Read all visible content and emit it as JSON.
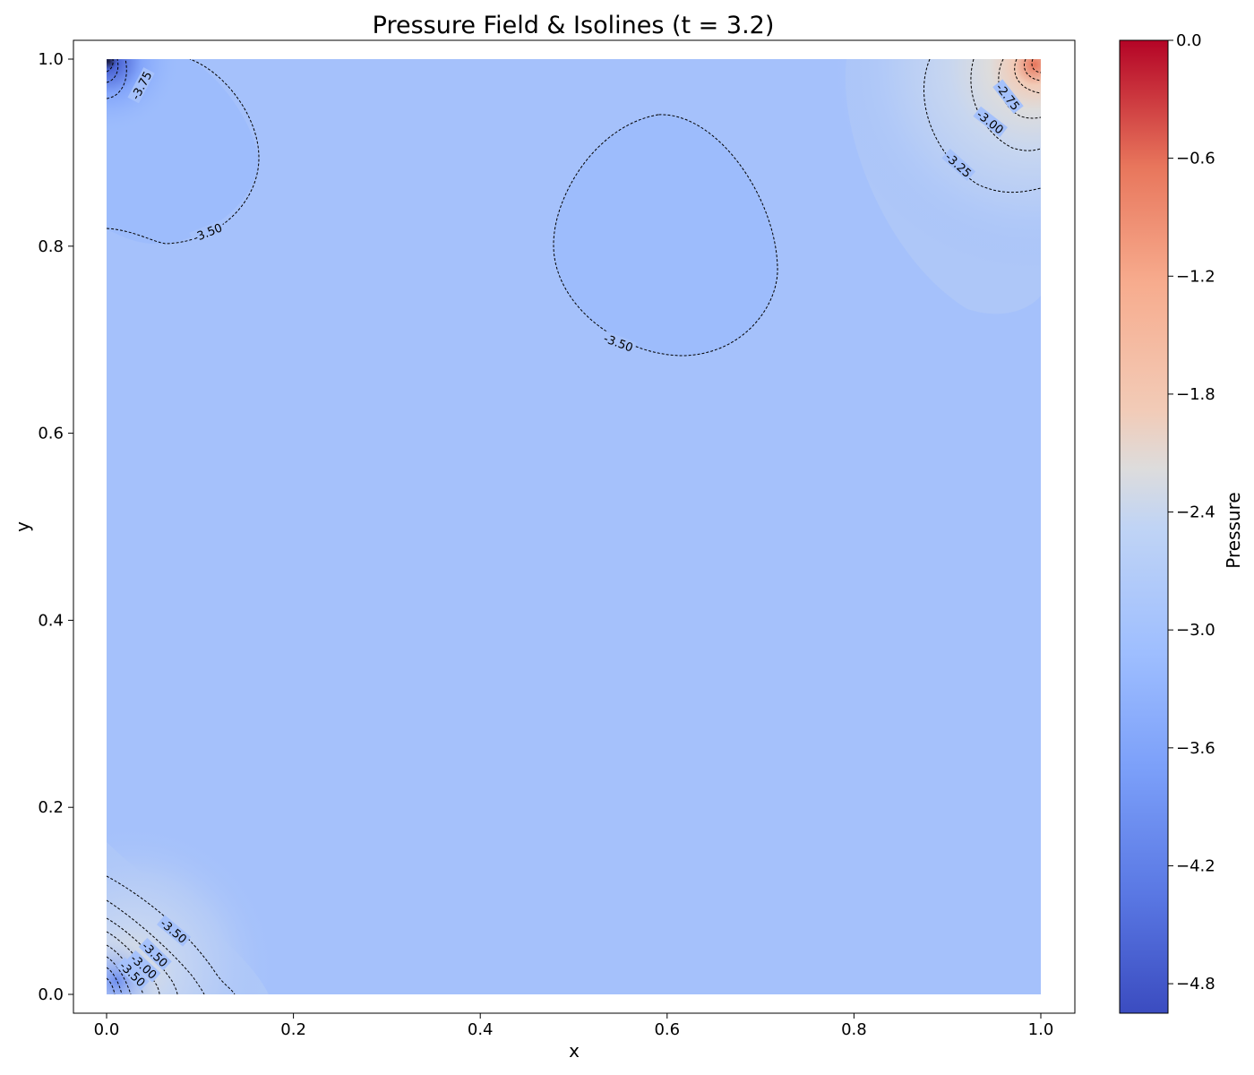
{
  "chart_data": {
    "type": "heatmap",
    "title": "Pressure Field & Isolines (t = 3.2)",
    "xlabel": "x",
    "ylabel": "y",
    "xlim": [
      0.0,
      1.0
    ],
    "ylim": [
      0.0,
      1.0
    ],
    "x_ticks": [
      "0.0",
      "0.2",
      "0.4",
      "0.6",
      "0.8",
      "1.0"
    ],
    "y_ticks": [
      "0.0",
      "0.2",
      "0.4",
      "0.6",
      "0.8",
      "1.0"
    ],
    "colorbar": {
      "label": "Pressure",
      "colormap": "coolwarm",
      "range": [
        -4.95,
        0.0
      ],
      "ticks": [
        "0.0",
        "−0.6",
        "−1.2",
        "−1.8",
        "−2.4",
        "−3.0",
        "−3.6",
        "−4.2",
        "−4.8"
      ],
      "tick_values": [
        0.0,
        -0.6,
        -1.2,
        -1.8,
        -2.4,
        -3.0,
        -3.6,
        -4.2,
        -4.8
      ]
    },
    "background_pressure": -3.45,
    "features": [
      {
        "region": "top-right corner",
        "x": 0.99,
        "y": 0.99,
        "peak_pressure": -1.2
      },
      {
        "region": "bottom-left corner",
        "x": 0.03,
        "y": 0.03,
        "peak_pressure": -2.6
      },
      {
        "region": "top-left corner",
        "x": 0.0,
        "y": 1.0,
        "peak_pressure": -4.95
      },
      {
        "region": "central-upper basin",
        "x": 0.6,
        "y": 0.8,
        "peak_pressure": -3.55
      }
    ],
    "contour_labels": [
      {
        "text": "-3.75",
        "x": 0.037,
        "y": 0.972
      },
      {
        "text": "-3.50",
        "x": 0.108,
        "y": 0.815
      },
      {
        "text": "-3.50",
        "x": 0.548,
        "y": 0.697
      },
      {
        "text": "-2.75",
        "x": 0.965,
        "y": 0.96
      },
      {
        "text": "-3.00",
        "x": 0.946,
        "y": 0.933
      },
      {
        "text": "-3.25",
        "x": 0.912,
        "y": 0.887
      },
      {
        "text": "-3.50",
        "x": 0.072,
        "y": 0.068
      },
      {
        "text": "-3.50",
        "x": 0.052,
        "y": 0.043
      },
      {
        "text": "-3.00",
        "x": 0.04,
        "y": 0.03
      },
      {
        "text": "-3.50",
        "x": 0.028,
        "y": 0.022
      }
    ]
  }
}
